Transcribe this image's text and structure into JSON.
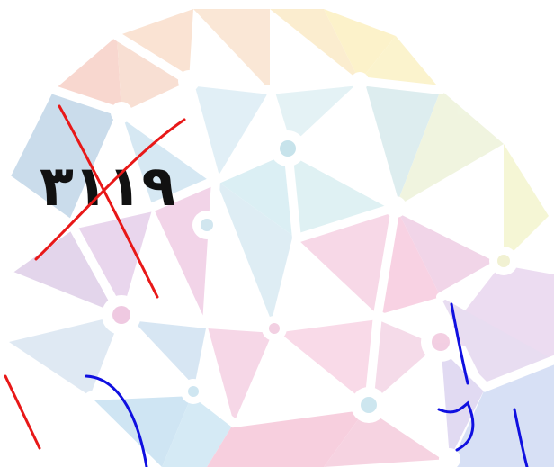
{
  "printed_text": "٩١١٣",
  "colors": {
    "red_ink": "#e81818",
    "blue_ink": "#1010e0",
    "lines": "#ffffff",
    "text": "#111111"
  }
}
